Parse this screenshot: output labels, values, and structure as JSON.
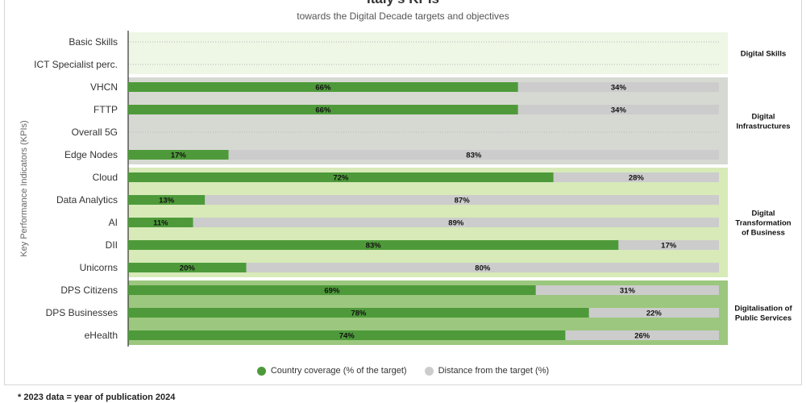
{
  "chart_data": {
    "type": "bar",
    "orientation": "horizontal",
    "stacked": true,
    "title": "Italy's KPIs",
    "subtitle": "towards the Digital Decade targets and objectives",
    "ylabel": "Key Performance Indicators (KPIs)",
    "xlim": [
      0,
      100
    ],
    "categories": [
      "Basic Skills",
      "ICT Specialist perc.",
      "VHCN",
      "FTTP",
      "Overall 5G",
      "Edge Nodes",
      "Cloud",
      "Data Analytics",
      "AI",
      "DII",
      "Unicorns",
      "DPS Citizens",
      "DPS Businesses",
      "eHealth"
    ],
    "series": [
      {
        "name": "Country coverage (% of the target)",
        "color": "#4e9a3a",
        "values": [
          null,
          null,
          66,
          66,
          null,
          17,
          72,
          13,
          11,
          83,
          20,
          69,
          78,
          74
        ]
      },
      {
        "name": "Distance from the target (%)",
        "color": "#cccccc",
        "values": [
          null,
          null,
          34,
          34,
          null,
          83,
          28,
          87,
          89,
          17,
          80,
          31,
          22,
          26
        ]
      }
    ],
    "groups": [
      {
        "label_lines": [
          "Digital Skills"
        ],
        "start": 0,
        "end": 1,
        "color": "#eef6e6"
      },
      {
        "label_lines": [
          "Digital",
          "Infrastructures"
        ],
        "start": 2,
        "end": 5,
        "color": "#d6d9d2"
      },
      {
        "label_lines": [
          "Digital",
          "Transformation",
          "of Business"
        ],
        "start": 6,
        "end": 10,
        "color": "#d7eab8"
      },
      {
        "label_lines": [
          "Digitalisation of",
          "Public Services"
        ],
        "start": 11,
        "end": 13,
        "color": "#9cc77e"
      }
    ],
    "legend_position": "bottom-center"
  },
  "footnote": "* 2023 data = year of publication 2024"
}
